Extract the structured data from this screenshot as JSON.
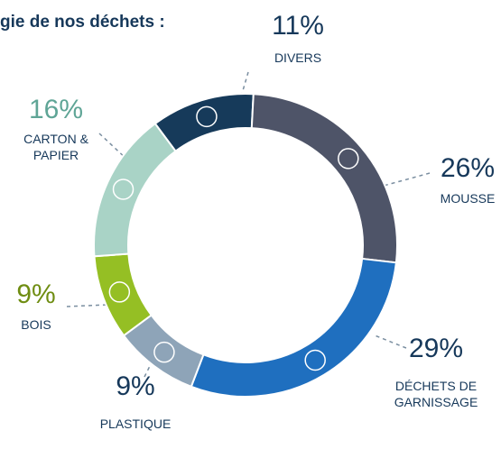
{
  "chart_data": {
    "type": "donut",
    "title": "gie de nos déchets :",
    "categories": [
      "DIVERS",
      "MOUSSE",
      "DÉCHETS DE GARNISSAGE",
      "PLASTIQUE",
      "BOIS",
      "CARTON & PAPIER"
    ],
    "values": [
      11,
      26,
      29,
      9,
      9,
      16
    ],
    "value_labels": [
      "11%",
      "26%",
      "29%",
      "9%",
      "9%",
      "16%"
    ],
    "colors": [
      "#163a5a",
      "#4e5468",
      "#1f6fbf",
      "#8ea4b8",
      "#95bf24",
      "#a9d3c6"
    ]
  }
}
